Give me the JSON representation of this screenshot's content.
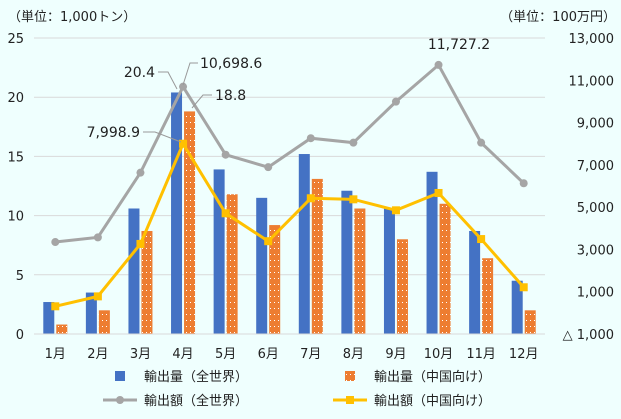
{
  "chart_data": {
    "type": "bar",
    "left_unit": "（単位：1,000トン）",
    "right_unit": "（単位：100万円）",
    "categories": [
      "1月",
      "2月",
      "3月",
      "4月",
      "5月",
      "6月",
      "7月",
      "8月",
      "9月",
      "10月",
      "11月",
      "12月"
    ],
    "left_axis": {
      "min": 0,
      "max": 25,
      "ticks": [
        "0",
        "5",
        "10",
        "15",
        "20",
        "25"
      ],
      "tick_values": [
        0,
        5,
        10,
        15,
        20,
        25
      ]
    },
    "right_axis": {
      "min": -1000,
      "max": 13000,
      "ticks": [
        "△ 1,000",
        "1,000",
        "3,000",
        "5,000",
        "7,000",
        "9,000",
        "11,000",
        "13,000"
      ],
      "tick_values": [
        -1000,
        1000,
        3000,
        5000,
        7000,
        9000,
        11000,
        13000
      ]
    },
    "series": [
      {
        "name": "輸出量（全世界）",
        "type": "bar",
        "axis": "left",
        "color": "#4472c4",
        "values": [
          2.7,
          3.5,
          10.6,
          20.4,
          13.9,
          11.5,
          15.2,
          12.1,
          10.6,
          13.7,
          8.7,
          4.5
        ]
      },
      {
        "name": "輸出量（中国向け）",
        "type": "bar",
        "axis": "left",
        "color": "#ed7d31",
        "values": [
          0.8,
          2.0,
          8.7,
          18.8,
          11.8,
          9.2,
          13.1,
          10.6,
          8.0,
          11.0,
          6.4,
          2.0
        ]
      },
      {
        "name": "輸出額（全世界）",
        "type": "line",
        "axis": "right",
        "color": "#a5a5a5",
        "values": [
          3350,
          3570,
          6630,
          10698.6,
          7480,
          6890,
          8260,
          8050,
          9990,
          11727.2,
          8050,
          6130
        ]
      },
      {
        "name": "輸出額（中国向け）",
        "type": "line",
        "axis": "right",
        "color": "#ffc000",
        "values": [
          310,
          780,
          3260,
          7998.9,
          4710,
          3390,
          5420,
          5370,
          4850,
          5670,
          3490,
          1210
        ]
      }
    ],
    "annotations": [
      "20.4",
      "10,698.6",
      "18.8",
      "7,998.9",
      "11,727.2"
    ],
    "grid": true,
    "legend_placement": "bottom"
  }
}
